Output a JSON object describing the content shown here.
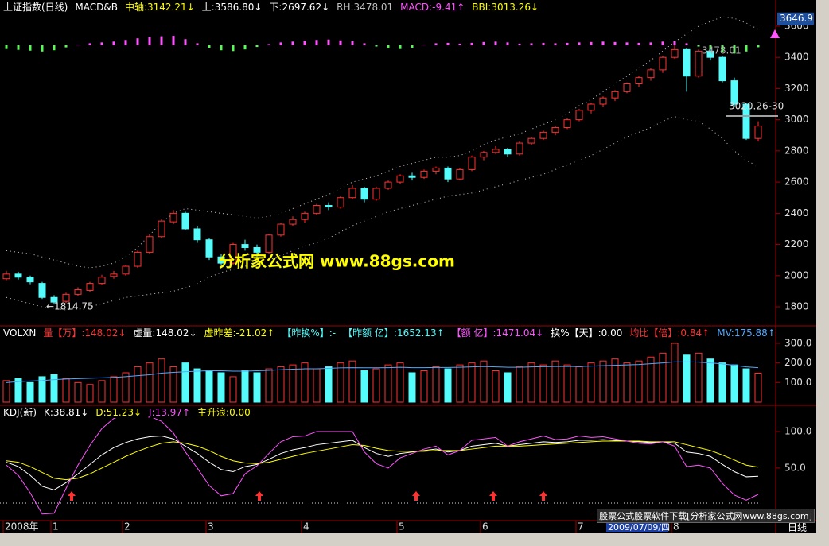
{
  "chart_data": [
    {
      "type": "candlestick",
      "title": "上证指数(日线)",
      "legend_items": [
        {
          "text": "MACD&B",
          "color": "#ffffff"
        },
        {
          "text": "中轴:3142.21↓",
          "color": "#ffff00"
        },
        {
          "text": "上:3586.80↓",
          "color": "#ffffff"
        },
        {
          "text": "下:2697.62↓",
          "color": "#ffffff"
        },
        {
          "text": "RH:3478.01",
          "color": "#c0c0c0"
        },
        {
          "text": "MACD:-9.41↑",
          "color": "#ff54ff"
        },
        {
          "text": "BBI:3013.26↓",
          "color": "#ffff00"
        }
      ],
      "candles": [
        [
          1980,
          2030,
          1970,
          2010
        ],
        [
          2010,
          2025,
          1975,
          1990
        ],
        [
          1990,
          2000,
          1945,
          1960
        ],
        [
          1950,
          1960,
          1850,
          1860
        ],
        [
          1860,
          1875,
          1815,
          1830
        ],
        [
          1835,
          1890,
          1825,
          1880
        ],
        [
          1880,
          1925,
          1870,
          1910
        ],
        [
          1905,
          1960,
          1895,
          1950
        ],
        [
          1950,
          2005,
          1940,
          1990
        ],
        [
          1995,
          2030,
          1980,
          2010
        ],
        [
          2010,
          2070,
          2000,
          2060
        ],
        [
          2060,
          2160,
          2050,
          2150
        ],
        [
          2150,
          2260,
          2140,
          2250
        ],
        [
          2250,
          2360,
          2240,
          2350
        ],
        [
          2345,
          2420,
          2330,
          2400
        ],
        [
          2400,
          2410,
          2290,
          2300
        ],
        [
          2300,
          2320,
          2210,
          2230
        ],
        [
          2230,
          2240,
          2100,
          2120
        ],
        [
          2120,
          2140,
          2060,
          2080
        ],
        [
          2080,
          2210,
          2070,
          2200
        ],
        [
          2200,
          2230,
          2160,
          2180
        ],
        [
          2180,
          2200,
          2120,
          2150
        ],
        [
          2150,
          2270,
          2140,
          2260
        ],
        [
          2260,
          2340,
          2250,
          2330
        ],
        [
          2330,
          2380,
          2320,
          2360
        ],
        [
          2360,
          2410,
          2340,
          2400
        ],
        [
          2400,
          2460,
          2390,
          2450
        ],
        [
          2450,
          2470,
          2420,
          2440
        ],
        [
          2440,
          2510,
          2430,
          2500
        ],
        [
          2500,
          2580,
          2490,
          2560
        ],
        [
          2560,
          2570,
          2470,
          2490
        ],
        [
          2490,
          2570,
          2480,
          2560
        ],
        [
          2560,
          2610,
          2550,
          2600
        ],
        [
          2600,
          2650,
          2590,
          2640
        ],
        [
          2640,
          2660,
          2610,
          2630
        ],
        [
          2630,
          2680,
          2620,
          2670
        ],
        [
          2670,
          2700,
          2650,
          2690
        ],
        [
          2690,
          2700,
          2600,
          2620
        ],
        [
          2620,
          2690,
          2610,
          2680
        ],
        [
          2680,
          2770,
          2670,
          2760
        ],
        [
          2760,
          2800,
          2740,
          2790
        ],
        [
          2790,
          2830,
          2780,
          2810
        ],
        [
          2810,
          2820,
          2760,
          2780
        ],
        [
          2780,
          2860,
          2770,
          2850
        ],
        [
          2850,
          2890,
          2840,
          2880
        ],
        [
          2880,
          2930,
          2870,
          2920
        ],
        [
          2920,
          2960,
          2900,
          2950
        ],
        [
          2950,
          3010,
          2940,
          3000
        ],
        [
          3000,
          3070,
          2990,
          3060
        ],
        [
          3060,
          3110,
          3040,
          3100
        ],
        [
          3100,
          3150,
          3080,
          3140
        ],
        [
          3140,
          3190,
          3120,
          3180
        ],
        [
          3180,
          3240,
          3170,
          3230
        ],
        [
          3230,
          3280,
          3210,
          3270
        ],
        [
          3270,
          3330,
          3250,
          3320
        ],
        [
          3320,
          3410,
          3300,
          3400
        ],
        [
          3400,
          3478,
          3390,
          3450
        ],
        [
          3450,
          3460,
          3180,
          3280
        ],
        [
          3280,
          3450,
          3270,
          3440
        ],
        [
          3440,
          3460,
          3380,
          3400
        ],
        [
          3400,
          3410,
          3240,
          3250
        ],
        [
          3250,
          3270,
          3080,
          3100
        ],
        [
          3100,
          3110,
          2870,
          2880
        ],
        [
          2880,
          2990,
          2860,
          2960
        ]
      ],
      "up_color": "#ff3232",
      "down_color": "#54fcfc",
      "upper": [
        2160,
        2150,
        2140,
        2120,
        2100,
        2080,
        2060,
        2050,
        2060,
        2080,
        2120,
        2180,
        2260,
        2340,
        2400,
        2430,
        2420,
        2410,
        2400,
        2390,
        2380,
        2370,
        2380,
        2400,
        2430,
        2460,
        2490,
        2520,
        2560,
        2600,
        2620,
        2640,
        2670,
        2700,
        2720,
        2740,
        2760,
        2760,
        2770,
        2800,
        2840,
        2870,
        2890,
        2910,
        2940,
        2970,
        3000,
        3040,
        3090,
        3130,
        3180,
        3230,
        3280,
        3330,
        3380,
        3440,
        3500,
        3550,
        3600,
        3630,
        3660,
        3650,
        3620,
        3580
      ],
      "lower": [
        1860,
        1840,
        1820,
        1800,
        1790,
        1780,
        1790,
        1800,
        1820,
        1840,
        1860,
        1870,
        1880,
        1890,
        1900,
        1920,
        1950,
        1990,
        2020,
        2040,
        2060,
        2080,
        2100,
        2130,
        2160,
        2190,
        2210,
        2240,
        2280,
        2320,
        2350,
        2380,
        2410,
        2430,
        2450,
        2470,
        2490,
        2510,
        2520,
        2530,
        2550,
        2570,
        2590,
        2610,
        2630,
        2650,
        2680,
        2710,
        2740,
        2770,
        2810,
        2850,
        2890,
        2920,
        2950,
        2990,
        3020,
        3000,
        2990,
        2940,
        2880,
        2800,
        2740,
        2700
      ],
      "band_color": "#c8c8c8",
      "macd": [
        -18,
        -22,
        -26,
        -30,
        -24,
        -10,
        4,
        10,
        14,
        18,
        26,
        34,
        40,
        44,
        46,
        30,
        10,
        -12,
        -24,
        -28,
        -20,
        -8,
        6,
        14,
        18,
        22,
        26,
        28,
        24,
        20,
        10,
        -6,
        -14,
        -18,
        -12,
        4,
        10,
        12,
        8,
        12,
        16,
        18,
        14,
        8,
        10,
        12,
        10,
        12,
        14,
        16,
        18,
        16,
        14,
        12,
        14,
        18,
        20,
        10,
        -6,
        -20,
        -34,
        -40,
        -30,
        -9.41
      ],
      "macd_up_color": "#ff54ff",
      "macd_down_color": "#54fc54",
      "ylim": [
        1688,
        3666
      ],
      "yticks": [
        3600,
        3400,
        3200,
        3000,
        2800,
        2600,
        2400,
        2200,
        2000,
        1800
      ],
      "last_price": 3646.9,
      "annotations": [
        "←1814.75",
        "3478.01",
        "3020.26-30"
      ]
    },
    {
      "type": "bar",
      "title": "VOLXN",
      "legend_items": [
        {
          "text": "量【万】:148.02↓",
          "color": "#ff3232"
        },
        {
          "text": "虚量:148.02↓",
          "color": "#ffffff"
        },
        {
          "text": "虚昨差:-21.02↑",
          "color": "#ffff00"
        },
        {
          "text": "【昨换%】:-",
          "color": "#54fcfc"
        },
        {
          "text": "【昨额 亿】:1652.13↑",
          "color": "#54fcfc"
        },
        {
          "text": "【额 亿】:1471.04↓",
          "color": "#ff54ff"
        },
        {
          "text": "换%【天】:0.00",
          "color": "#ffffff"
        },
        {
          "text": "均比【倍】:0.84↑",
          "color": "#ff3232"
        },
        {
          "text": "MV:175.88↑",
          "color": "#54a8fc"
        }
      ],
      "values": [
        110,
        120,
        100,
        130,
        140,
        120,
        100,
        90,
        110,
        130,
        150,
        180,
        200,
        220,
        180,
        200,
        170,
        160,
        150,
        130,
        160,
        150,
        170,
        180,
        190,
        200,
        170,
        180,
        200,
        210,
        160,
        170,
        190,
        200,
        150,
        160,
        180,
        170,
        190,
        200,
        210,
        160,
        150,
        180,
        200,
        190,
        210,
        190,
        180,
        200,
        210,
        220,
        200,
        210,
        230,
        250,
        300,
        240,
        250,
        220,
        200,
        190,
        170,
        148.02
      ],
      "mv": [
        100,
        105,
        108,
        110,
        115,
        118,
        120,
        122,
        124,
        126,
        130,
        135,
        140,
        148,
        152,
        155,
        158,
        160,
        160,
        158,
        158,
        160,
        162,
        165,
        168,
        170,
        170,
        172,
        175,
        176,
        175,
        175,
        176,
        178,
        176,
        176,
        177,
        177,
        178,
        180,
        182,
        180,
        178,
        178,
        180,
        181,
        182,
        182,
        182,
        184,
        186,
        188,
        190,
        192,
        196,
        200,
        205,
        205,
        204,
        200,
        195,
        188,
        180,
        175.88
      ],
      "mv_color": "#54a8fc",
      "ylim": [
        0,
        389
      ],
      "yticks": [
        {
          "value": 300,
          "label": "300.0"
        },
        {
          "value": 200,
          "label": "200.0"
        },
        {
          "value": 100,
          "label": "100.0"
        }
      ]
    },
    {
      "type": "line",
      "title": "KDJ(新)",
      "legend_items": [
        {
          "text": "K:38.81↓",
          "color": "#ffffff"
        },
        {
          "text": "D:51.23↓",
          "color": "#ffff00"
        },
        {
          "text": "J:13.97↑",
          "color": "#ff54ff"
        },
        {
          "text": "主升浪:0.00",
          "color": "#ffff00"
        }
      ],
      "series": [
        {
          "color": "#ffffff",
          "values": [
            58,
            52,
            40,
            25,
            20,
            30,
            42,
            55,
            68,
            78,
            85,
            90,
            93,
            94,
            90,
            80,
            70,
            58,
            48,
            45,
            52,
            55,
            62,
            70,
            75,
            78,
            82,
            84,
            86,
            88,
            78,
            70,
            66,
            70,
            72,
            74,
            76,
            72,
            74,
            80,
            82,
            84,
            80,
            82,
            84,
            86,
            85,
            86,
            88,
            88,
            89,
            88,
            87,
            86,
            85,
            86,
            84,
            72,
            70,
            66,
            55,
            45,
            38,
            38.81
          ]
        },
        {
          "color": "#ffff00",
          "values": [
            60,
            58,
            52,
            44,
            36,
            34,
            36,
            42,
            50,
            58,
            66,
            73,
            79,
            84,
            86,
            84,
            80,
            74,
            66,
            60,
            57,
            56,
            58,
            62,
            66,
            70,
            73,
            76,
            79,
            82,
            81,
            77,
            74,
            73,
            73,
            73,
            74,
            74,
            74,
            76,
            78,
            80,
            80,
            80,
            81,
            82,
            83,
            84,
            85,
            86,
            87,
            87,
            87,
            87,
            86,
            86,
            86,
            82,
            78,
            74,
            68,
            61,
            54,
            51.23
          ]
        },
        {
          "color": "#ff54ff",
          "values": [
            54,
            40,
            16,
            -13,
            -12,
            22,
            54,
            81,
            104,
            118,
            123,
            124,
            121,
            114,
            98,
            72,
            50,
            26,
            12,
            15,
            42,
            53,
            70,
            86,
            93,
            94,
            100,
            100,
            100,
            100,
            72,
            56,
            50,
            64,
            70,
            76,
            80,
            68,
            74,
            88,
            90,
            92,
            80,
            86,
            90,
            94,
            89,
            90,
            94,
            92,
            93,
            90,
            87,
            84,
            83,
            86,
            80,
            52,
            54,
            50,
            29,
            13,
            6,
            13.97
          ]
        }
      ],
      "ylim": [
        -22,
        136
      ],
      "yticks": [
        {
          "value": 100,
          "label": "100.0"
        },
        {
          "value": 50,
          "label": "50.0"
        }
      ],
      "categories": [
        "2008年",
        null,
        null,
        null,
        "1",
        null,
        null,
        null,
        null,
        null,
        "2",
        null,
        null,
        null,
        null,
        null,
        null,
        "3",
        null,
        null,
        null,
        null,
        null,
        null,
        null,
        "4",
        null,
        null,
        null,
        null,
        null,
        null,
        null,
        "5",
        null,
        null,
        null,
        null,
        null,
        null,
        "6",
        null,
        null,
        null,
        null,
        null,
        null,
        null,
        "7",
        null,
        null,
        null,
        null,
        null,
        null,
        null,
        "8",
        null,
        null,
        null,
        null,
        null,
        null,
        null
      ]
    }
  ],
  "watermark": "分析家公式网 www.88gs.com",
  "footer": {
    "banner": "股票公式股票软件下载[分析家公式网www.88gs.com]",
    "date": "2009/07/09/四",
    "period": "日线"
  }
}
